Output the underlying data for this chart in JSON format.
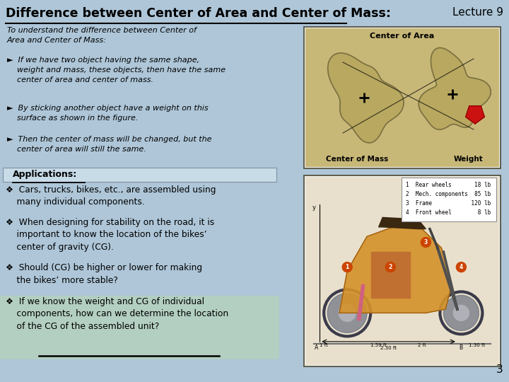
{
  "bg_color": "#aec6d8",
  "title": "Difference between Center of Area and Center of Mass:",
  "lecture": "Lecture 9",
  "title_fontsize": 12.5,
  "title_color": "#000000",
  "lecture_fontsize": 11,
  "page_number": "3",
  "intro_text": "To understand the difference between Center of\nArea and Center of Mass:",
  "bullet1": "Ø  If we have two object having the same shape,\nweight and mass, these objects, then have the same\ncenter of area and center of mass.",
  "bullet2": "Ø  By sticking another object have a weight on this\nsurface as shown in the figure.",
  "bullet3": "Ø  Then the center of mass will be changed, but the\ncenter of area will still the same.",
  "app_title": "Applications:",
  "app1": "❖  Cars, trucks, bikes, etc., are assembled using\nmany individual components.",
  "app2": "❖  When designing for stability on the road, it is\nimportant to know the location of the bikes’\ncenter of gravity (CG).",
  "app3": "❖  Should (CG) be higher or lower for making\nthe bikes’ more stable?",
  "app4": "❖  If we know the weight and CG of individual\ncomponents, how can we determine the location\nof the CG of the assembled unit?"
}
